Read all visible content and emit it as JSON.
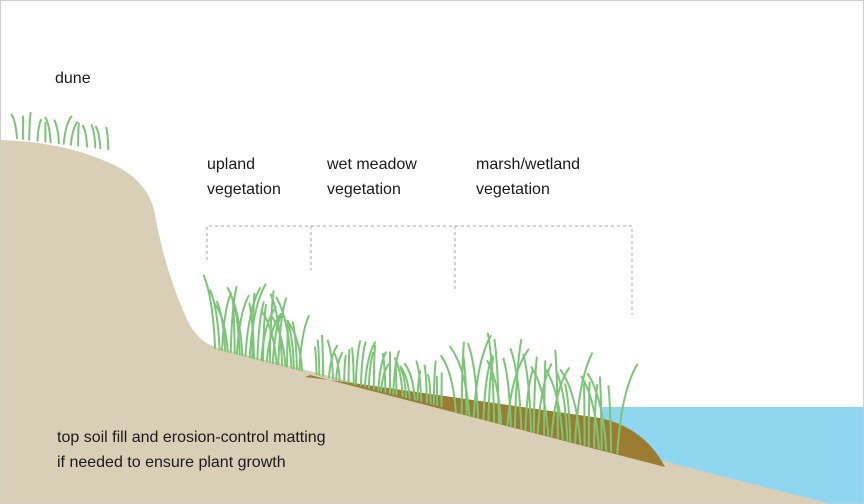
{
  "labels": {
    "dune": "dune",
    "upland": [
      "upland",
      "vegetation"
    ],
    "wet_meadow": [
      "wet meadow",
      "vegetation"
    ],
    "marsh": [
      "marsh/wetland",
      "vegetation"
    ],
    "soil": [
      "top soil fill and erosion-control matting",
      "if needed to ensure plant growth"
    ]
  }
}
